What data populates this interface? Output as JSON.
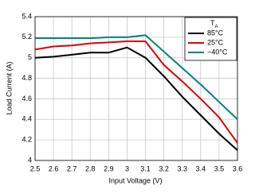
{
  "chart_data": {
    "type": "line",
    "x_label": "Input Voltage (V)",
    "y_label": "Load Current (A)",
    "legend_title": "T",
    "legend_title_sub": "A",
    "legend": "upper right",
    "grid": true,
    "x": [
      2.5,
      2.6,
      2.7,
      2.8,
      2.9,
      3.0,
      3.1,
      3.2,
      3.3,
      3.4,
      3.5,
      3.6
    ],
    "series": [
      {
        "name": "85°C",
        "color": "#000000",
        "values": [
          5.0,
          5.01,
          5.03,
          5.05,
          5.05,
          5.1,
          5.0,
          4.82,
          4.62,
          4.44,
          4.26,
          4.1
        ]
      },
      {
        "name": "25°C",
        "color": "#e00000",
        "values": [
          5.08,
          5.11,
          5.12,
          5.14,
          5.15,
          5.16,
          5.16,
          4.93,
          4.77,
          4.6,
          4.42,
          4.17
        ]
      },
      {
        "name": "−40°C",
        "color": "#008080",
        "values": [
          5.19,
          5.19,
          5.19,
          5.19,
          5.2,
          5.2,
          5.22,
          5.06,
          4.9,
          4.74,
          4.57,
          4.4
        ]
      }
    ],
    "xlim": [
      2.5,
      3.6
    ],
    "xticks": [
      2.5,
      2.6,
      2.7,
      2.8,
      2.9,
      3,
      3.1,
      3.2,
      3.3,
      3.4,
      3.5,
      3.6
    ],
    "ylim": [
      4,
      5.4
    ],
    "yticks": [
      4,
      4.2,
      4.4,
      4.6,
      4.8,
      5,
      5.2,
      5.4
    ]
  }
}
